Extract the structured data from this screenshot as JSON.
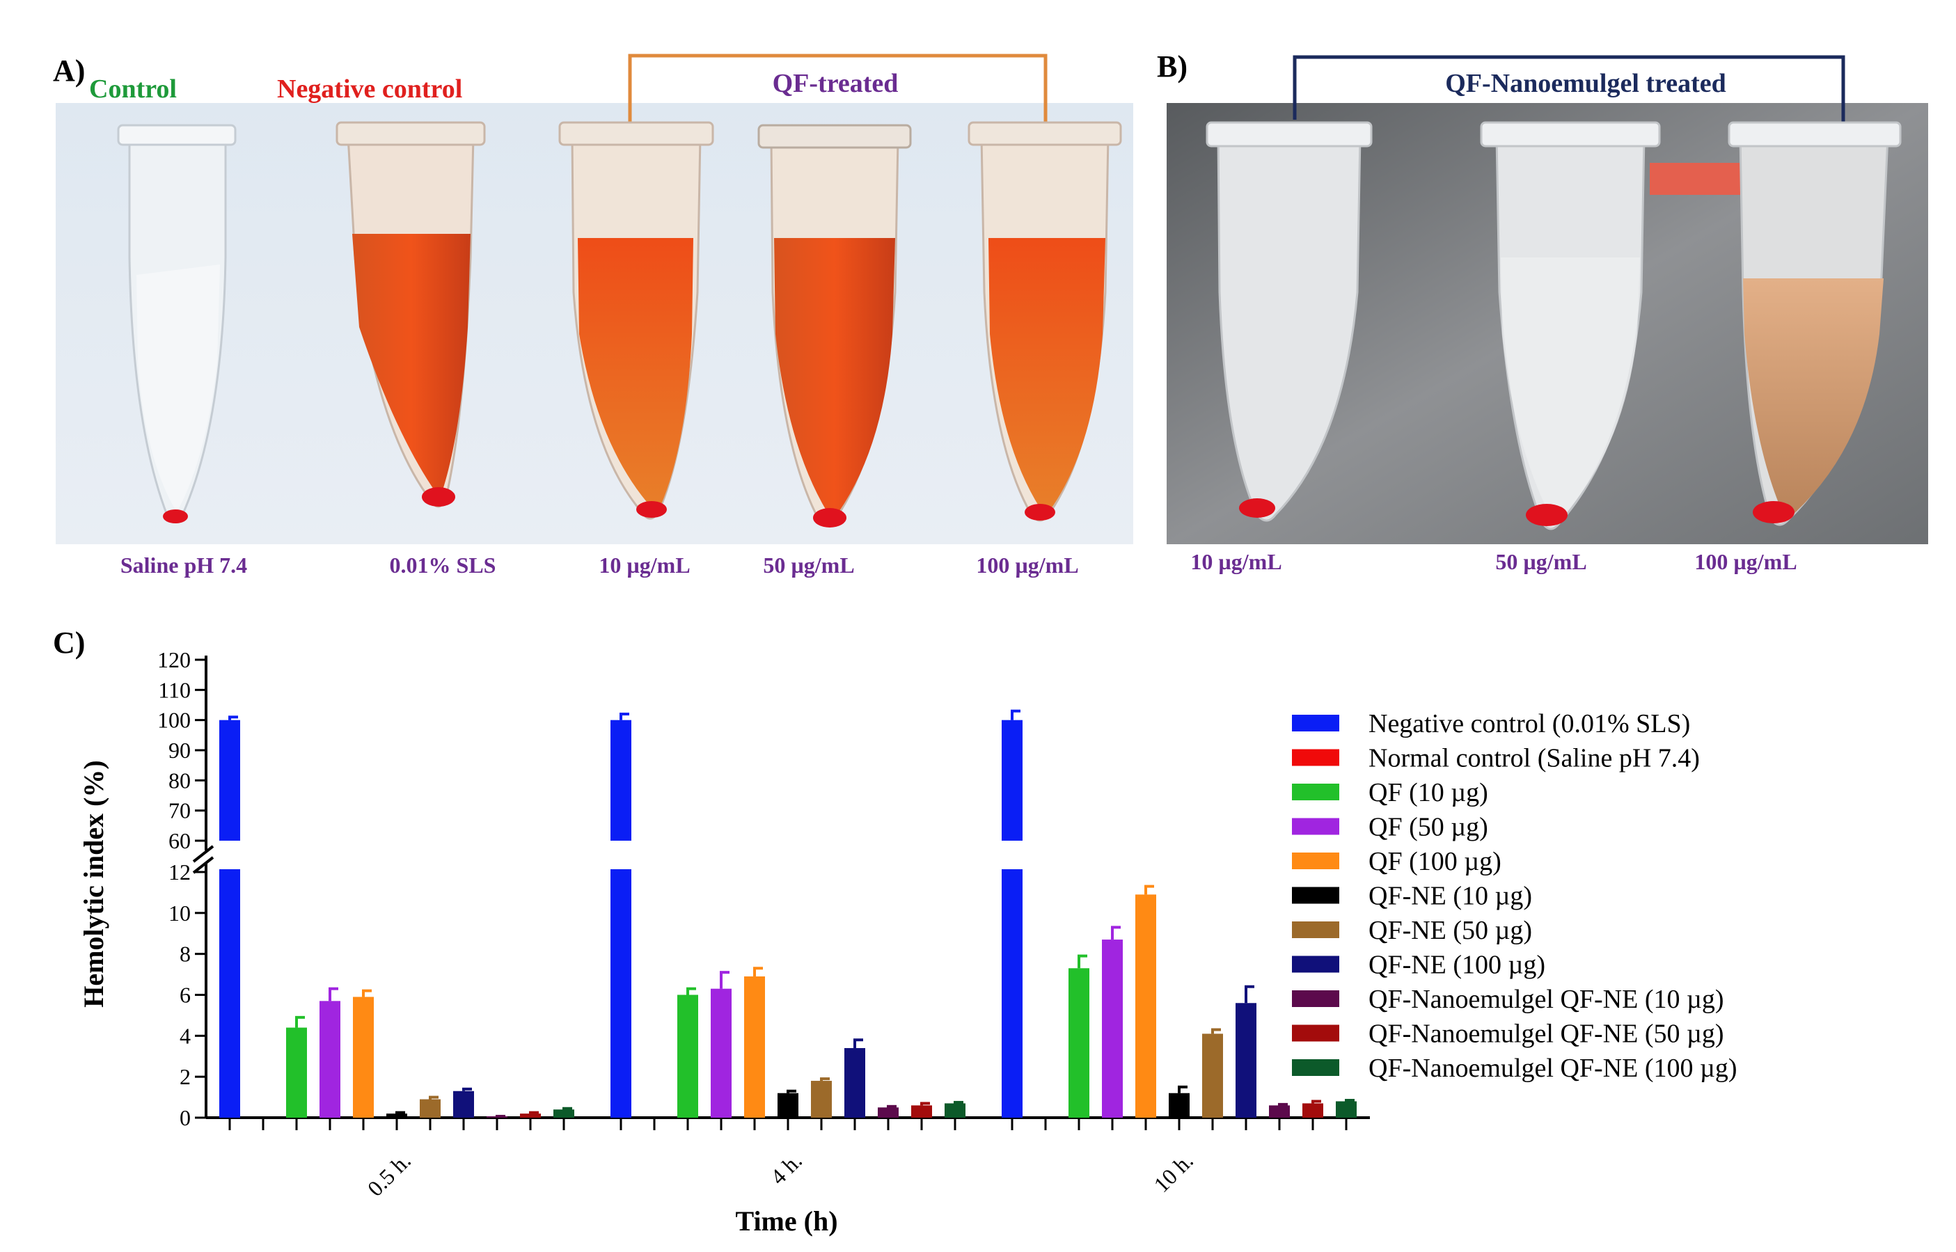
{
  "panel_a": {
    "letter": "A)",
    "headers": {
      "control": "Control",
      "negative": "Negative control",
      "treated": "QF-treated"
    },
    "tube_labels": [
      "Saline pH 7.4",
      "0.01% SLS",
      "10 µg/mL",
      "50 µg/mL",
      "100 µg/mL"
    ]
  },
  "panel_b": {
    "letter": "B)",
    "header": "QF-Nanoemulgel treated",
    "tube_labels": [
      "10 µg/mL",
      "50 µg/mL",
      "100 µg/mL"
    ]
  },
  "panel_c": {
    "letter": "C)"
  },
  "colors": {
    "label_purple": "#6a2c91",
    "control_green": "#1e9a3a",
    "negative_red": "#e0201e",
    "bracket_orange": "#e08a3c",
    "bracket_navy": "#1b2a5c"
  },
  "chart_data": {
    "type": "bar",
    "xlabel": "Time (h)",
    "ylabel": "Hemolytic index (%)",
    "categories": [
      "0.5 h.",
      "4 h.",
      "10 h."
    ],
    "y_axis": {
      "broken": true,
      "lower_range": [
        0,
        12
      ],
      "lower_ticks": [
        "0",
        "2",
        "4",
        "6",
        "8",
        "10",
        "12"
      ],
      "upper_range": [
        60,
        120
      ],
      "upper_ticks": [
        "60",
        "70",
        "80",
        "90",
        "100",
        "110",
        "120"
      ]
    },
    "legend_position": "right",
    "grid": false,
    "series": [
      {
        "name": "Negative control (0.01% SLS)",
        "color": "#0a1ef5",
        "values": [
          100,
          100,
          100
        ],
        "errors": [
          1,
          2,
          3
        ]
      },
      {
        "name": "Normal control (Saline pH 7.4)",
        "color": "#f00a0a",
        "values": [
          0,
          0,
          0
        ],
        "errors": [
          0,
          0,
          0
        ]
      },
      {
        "name": "QF (10 µg)",
        "color": "#22c02a",
        "values": [
          4.4,
          6.0,
          7.3
        ],
        "errors": [
          0.5,
          0.3,
          0.6
        ]
      },
      {
        "name": "QF (50 µg)",
        "color": "#a025e0",
        "values": [
          5.7,
          6.3,
          8.7
        ],
        "errors": [
          0.6,
          0.8,
          0.6
        ]
      },
      {
        "name": "QF (100 µg)",
        "color": "#ff8a14",
        "values": [
          5.9,
          6.9,
          10.9
        ],
        "errors": [
          0.3,
          0.4,
          0.4
        ]
      },
      {
        "name": "QF-NE (10 µg)",
        "color": "#000000",
        "values": [
          0.2,
          1.2,
          1.2
        ],
        "errors": [
          0.05,
          0.1,
          0.3
        ]
      },
      {
        "name": "QF-NE (50 µg)",
        "color": "#9c6a2a",
        "values": [
          0.9,
          1.8,
          4.1
        ],
        "errors": [
          0.1,
          0.1,
          0.2
        ]
      },
      {
        "name": "QF-NE (100 µg)",
        "color": "#10107a",
        "values": [
          1.3,
          3.4,
          5.6
        ],
        "errors": [
          0.1,
          0.4,
          0.8
        ]
      },
      {
        "name": "QF-Nanoemulgel QF-NE (10 µg)",
        "color": "#5c0a4c",
        "values": [
          0.05,
          0.5,
          0.6
        ],
        "errors": [
          0.02,
          0.05,
          0.05
        ]
      },
      {
        "name": "QF-Nanoemulgel QF-NE (50 µg)",
        "color": "#a30c0c",
        "values": [
          0.2,
          0.6,
          0.7
        ],
        "errors": [
          0.05,
          0.1,
          0.1
        ]
      },
      {
        "name": "QF-Nanoemulgel QF-NE (100 µg)",
        "color": "#0c5a2a",
        "values": [
          0.4,
          0.7,
          0.8
        ],
        "errors": [
          0.05,
          0.05,
          0.05
        ]
      }
    ]
  }
}
